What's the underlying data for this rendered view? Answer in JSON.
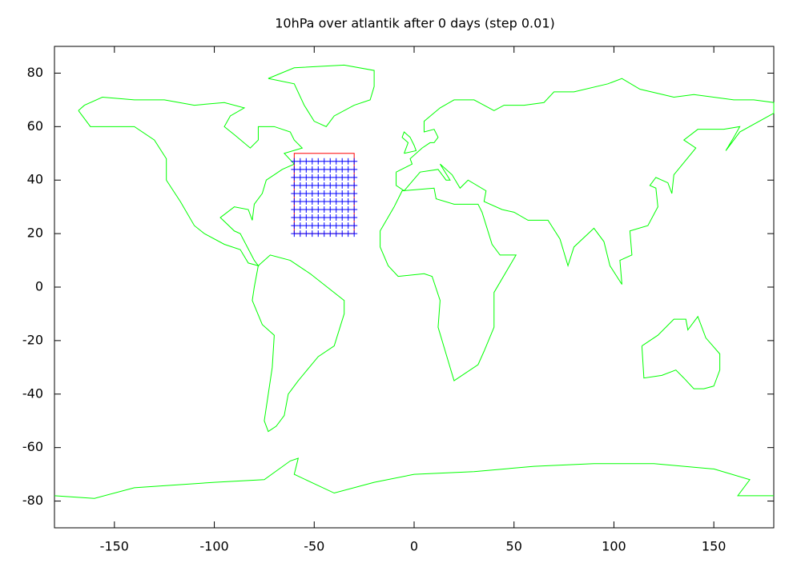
{
  "chart_data": {
    "type": "map",
    "title": "10hPa over atlantik after 0 days (step 0.01)",
    "xlim": [
      -180,
      180
    ],
    "ylim": [
      -90,
      90
    ],
    "xticks": [
      -150,
      -100,
      -50,
      0,
      50,
      100,
      150
    ],
    "yticks": [
      -80,
      -60,
      -40,
      -20,
      0,
      20,
      40,
      60,
      80
    ],
    "coast_color": "#00ff00",
    "coastlines": [
      {
        "x": [
          -168,
          -162,
          -152,
          -140,
          -130,
          -124,
          -124,
          -117,
          -110,
          -105,
          -95,
          -87,
          -83,
          -78,
          -80,
          -87,
          -90,
          -97,
          -90,
          -83,
          -81,
          -80,
          -76,
          -74,
          -70,
          -66,
          -60,
          -65,
          -56,
          -60,
          -62,
          -70,
          -78,
          -78,
          -82,
          -90,
          -95,
          -92,
          -85,
          -95,
          -110,
          -125,
          -140,
          -156,
          -165,
          -168
        ],
        "y": [
          66,
          60,
          60,
          60,
          55,
          48,
          40,
          32,
          23,
          20,
          16,
          14,
          9,
          8,
          10,
          20,
          21,
          26,
          30,
          29,
          25,
          31,
          35,
          40,
          42,
          44,
          46,
          50,
          52,
          55,
          58,
          60,
          60,
          55,
          52,
          57,
          60,
          64,
          67,
          69,
          68,
          70,
          70,
          71,
          68,
          66
        ]
      },
      {
        "x": [
          -73,
          -60,
          -35,
          -20,
          -20,
          -22,
          -30,
          -40,
          -44,
          -50,
          -55,
          -60,
          -73
        ],
        "y": [
          78,
          82,
          83,
          81,
          75,
          70,
          68,
          64,
          60,
          62,
          68,
          76,
          78
        ]
      },
      {
        "x": [
          -78,
          -72,
          -62,
          -52,
          -35,
          -35,
          -40,
          -48,
          -58,
          -63,
          -65,
          -69,
          -73,
          -75,
          -73,
          -71,
          -70,
          -76,
          -81,
          -80,
          -78
        ],
        "y": [
          8,
          12,
          10,
          5,
          -5,
          -10,
          -22,
          -26,
          -35,
          -40,
          -48,
          -52,
          -54,
          -50,
          -40,
          -30,
          -18,
          -14,
          -5,
          0,
          8
        ]
      },
      {
        "x": [
          -17,
          -17,
          -10,
          -6,
          10,
          11,
          20,
          32,
          34,
          39,
          43,
          51,
          40,
          40,
          35,
          32,
          20,
          18,
          12,
          13,
          9,
          5,
          -8,
          -13,
          -17
        ],
        "y": [
          15,
          21,
          30,
          36,
          37,
          33,
          31,
          31,
          28,
          16,
          12,
          12,
          -2,
          -15,
          -24,
          -29,
          -35,
          -30,
          -15,
          -5,
          4,
          5,
          4,
          8,
          15
        ]
      },
      {
        "x": [
          -9,
          -9,
          -5,
          3,
          12,
          16,
          18,
          13,
          19,
          23,
          27,
          36,
          35,
          44,
          50,
          57,
          67,
          73,
          77,
          80,
          90,
          95,
          98,
          104,
          103,
          109,
          108,
          117,
          122,
          121,
          118,
          121,
          127,
          129,
          130,
          141,
          135,
          142,
          155,
          163,
          160,
          156,
          163,
          180,
          180,
          170,
          160,
          140,
          130,
          113,
          104,
          97,
          80,
          70,
          65,
          55,
          45,
          40,
          30,
          20,
          13,
          5,
          5,
          10,
          12,
          10,
          8,
          4,
          -2,
          -1,
          -9
        ],
        "y": [
          43,
          38,
          36,
          43,
          44,
          40,
          40,
          46,
          42,
          37,
          40,
          36,
          32,
          29,
          28,
          25,
          25,
          18,
          8,
          15,
          22,
          17,
          8,
          1,
          10,
          12,
          21,
          23,
          30,
          37,
          38,
          41,
          39,
          35,
          42,
          52,
          55,
          59,
          59,
          60,
          56,
          51,
          58,
          65,
          69,
          70,
          70,
          72,
          71,
          74,
          78,
          76,
          73,
          73,
          69,
          68,
          68,
          66,
          70,
          70,
          67,
          62,
          58,
          59,
          56,
          54,
          54,
          52,
          48,
          46,
          43
        ]
      },
      {
        "x": [
          114,
          122,
          130,
          136,
          137,
          142,
          146,
          153,
          153,
          150,
          145,
          140,
          135,
          131,
          124,
          115,
          114
        ],
        "y": [
          -22,
          -18,
          -12,
          -12,
          -16,
          -11,
          -19,
          -25,
          -31,
          -37,
          -38,
          -38,
          -34,
          -31,
          -33,
          -34,
          -22
        ]
      },
      {
        "x": [
          -180,
          -160,
          -140,
          -100,
          -75,
          -62,
          -58,
          -60,
          -40,
          -20,
          0,
          30,
          60,
          90,
          120,
          150,
          168,
          162,
          180
        ],
        "y": [
          -78,
          -79,
          -75,
          -73,
          -72,
          -65,
          -64,
          -70,
          -77,
          -73,
          -70,
          -69,
          -67,
          -66,
          -66,
          -68,
          -72,
          -78,
          -78
        ]
      },
      {
        "x": [
          -5,
          1,
          0,
          -2,
          -5,
          -6,
          -3,
          -5
        ],
        "y": [
          50,
          51,
          53,
          56,
          58,
          56,
          54,
          50
        ]
      }
    ],
    "region": {
      "color": "#ff0000",
      "x": [
        -60,
        -30
      ],
      "y": [
        20,
        50
      ]
    },
    "particles": {
      "color": "#0000ff",
      "x": [
        -60,
        -57,
        -54,
        -51,
        -48,
        -45,
        -42,
        -39,
        -36,
        -33,
        -30
      ],
      "y": [
        20,
        23,
        26,
        29,
        32,
        35,
        38,
        41,
        44,
        47
      ]
    }
  }
}
